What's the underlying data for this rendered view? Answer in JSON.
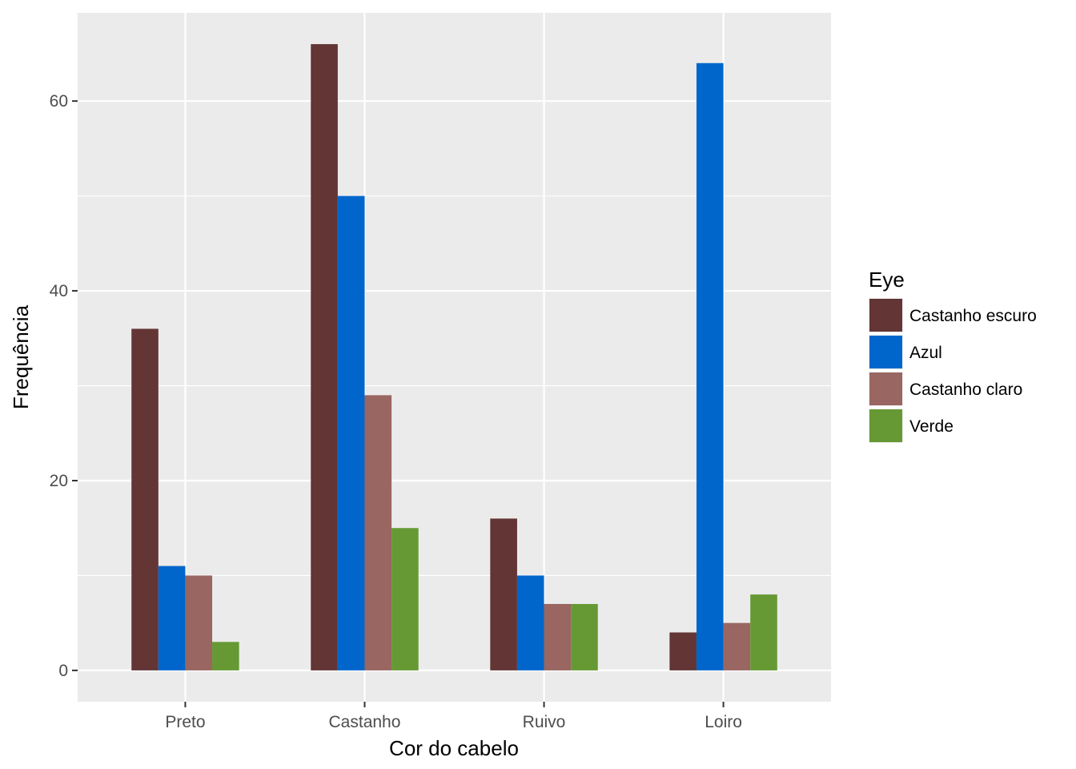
{
  "chart_data": {
    "type": "bar",
    "xlabel": "Cor do cabelo",
    "ylabel": "Frequência",
    "categories": [
      "Preto",
      "Castanho",
      "Ruivo",
      "Loiro"
    ],
    "series": [
      {
        "name": "Castanho escuro",
        "color": "#633535",
        "values": [
          36,
          66,
          16,
          4
        ]
      },
      {
        "name": "Azul",
        "color": "#0066CC",
        "values": [
          11,
          50,
          10,
          64
        ]
      },
      {
        "name": "Castanho claro",
        "color": "#996661",
        "values": [
          10,
          29,
          7,
          5
        ]
      },
      {
        "name": "Verde",
        "color": "#669933",
        "values": [
          3,
          15,
          7,
          8
        ]
      }
    ],
    "ylim": [
      -3.3,
      69.3
    ],
    "yticks": [
      0,
      20,
      40,
      60
    ],
    "grid": true,
    "legend": {
      "title": "Eye",
      "position": "right"
    },
    "panel_background": "#EBEBEB",
    "grid_color": "#FFFFFF"
  }
}
